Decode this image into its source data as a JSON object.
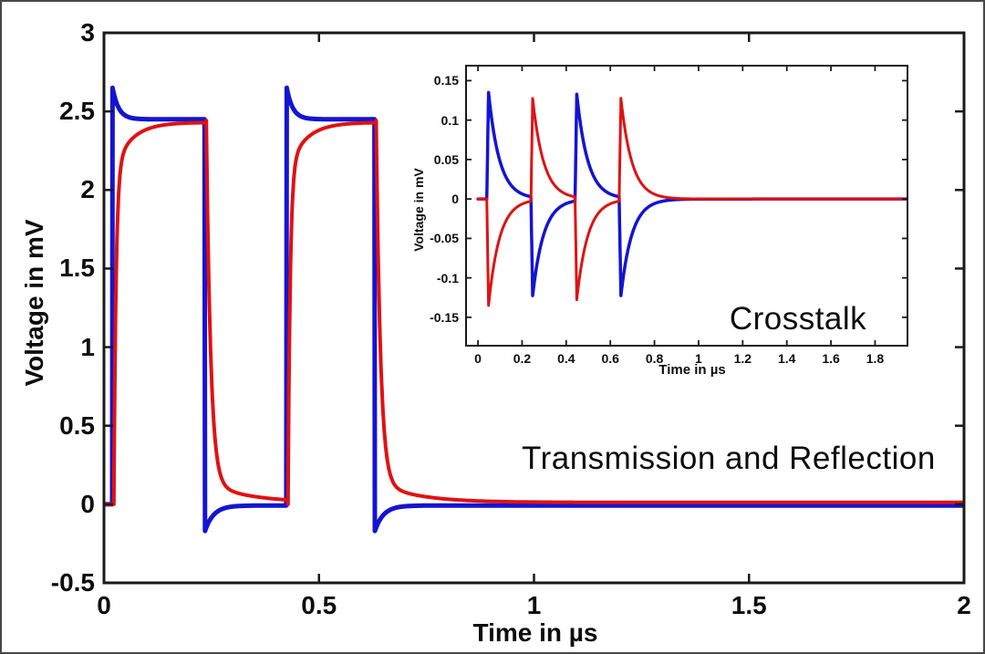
{
  "figure": {
    "background": "#ffffff",
    "frame_color": "#474747",
    "axis_color": "#1a1a1a",
    "blue_color": "#1414d2",
    "red_color": "#e01212"
  },
  "chart_data": [
    {
      "id": "main",
      "type": "line",
      "annotation": "Transmission and Reflection",
      "xlabel": "Time in µs",
      "ylabel": "Voltage in mV",
      "xlim": [
        0,
        2
      ],
      "ylim": [
        -0.5,
        3
      ],
      "grid": false,
      "legend": "none",
      "xticks": [
        {
          "v": 0,
          "label": "0"
        },
        {
          "v": 0.5,
          "label": "0.5"
        },
        {
          "v": 1,
          "label": "1"
        },
        {
          "v": 1.5,
          "label": "1.5"
        },
        {
          "v": 2,
          "label": "2"
        }
      ],
      "yticks": [
        {
          "v": -0.5,
          "label": "-0.5"
        },
        {
          "v": 0,
          "label": "0"
        },
        {
          "v": 0.5,
          "label": "0.5"
        },
        {
          "v": 1,
          "label": "1"
        },
        {
          "v": 1.5,
          "label": "1.5"
        },
        {
          "v": 2,
          "label": "2"
        },
        {
          "v": 2.5,
          "label": "2.5"
        },
        {
          "v": 3,
          "label": "3"
        }
      ],
      "sample_range": [
        0,
        2,
        0.001
      ],
      "series": [
        {
          "name": "blue-waveform",
          "color": "#1414d2",
          "width": 5,
          "model": "square_rc",
          "params": {
            "baseline": 0,
            "pulses": [
              [
                0.02,
                0.235
              ],
              [
                0.425,
                0.63
              ]
            ],
            "plateau": 2.45,
            "peak": 2.65,
            "tau_settle": 0.014,
            "under": -0.17,
            "tau_recover": 0.02,
            "tail": -0.008
          }
        },
        {
          "name": "red-waveform",
          "color": "#e01212",
          "width": 4,
          "model": "rc_pulse",
          "params": {
            "baseline": 0,
            "pulses": [
              [
                0.023,
                0.238
              ],
              [
                0.428,
                0.633
              ]
            ],
            "top": 2.43,
            "rise_knee": 0.3,
            "rise_fast": 0.005,
            "rise_slow": 0.04,
            "fall_knee": 0.13,
            "fall_fast": 0.01,
            "fall_slow": 0.09,
            "tail": 0.012
          }
        }
      ]
    },
    {
      "id": "inset",
      "type": "line",
      "annotation": "Crosstalk",
      "xlabel": "Time in µs",
      "ylabel": "Voltage in mV",
      "xlim": [
        -0.054,
        1.947
      ],
      "ylim": [
        -0.186,
        0.169
      ],
      "grid": false,
      "legend": "none",
      "xticks": [
        {
          "v": 0,
          "label": "0"
        },
        {
          "v": 0.2,
          "label": "0.2"
        },
        {
          "v": 0.4,
          "label": "0.4"
        },
        {
          "v": 0.6,
          "label": "0.6"
        },
        {
          "v": 0.8,
          "label": "0.8"
        },
        {
          "v": 1,
          "label": "1"
        },
        {
          "v": 1.2,
          "label": "1.2"
        },
        {
          "v": 1.4,
          "label": "1.4"
        },
        {
          "v": 1.6,
          "label": "1.6"
        },
        {
          "v": 1.8,
          "label": "1.8"
        }
      ],
      "yticks": [
        {
          "v": -0.15,
          "label": "-0.15"
        },
        {
          "v": -0.1,
          "label": "-0.1"
        },
        {
          "v": -0.05,
          "label": "-0.05"
        },
        {
          "v": 0,
          "label": "0"
        },
        {
          "v": 0.05,
          "label": "0.05"
        },
        {
          "v": 0.1,
          "label": "0.1"
        },
        {
          "v": 0.15,
          "label": "0.15"
        }
      ],
      "sample_range": [
        0,
        1.946,
        0.001
      ],
      "series": [
        {
          "name": "blue-crosstalk",
          "color": "#1414d2",
          "width": 3.5,
          "model": "spike_train",
          "params": {
            "baseline": 0,
            "rise": 0.008,
            "tau": 0.05,
            "spikes": [
              {
                "t": 0.04,
                "peak": 0.135
              },
              {
                "t": 0.24,
                "peak": -0.125
              },
              {
                "t": 0.44,
                "peak": 0.135
              },
              {
                "t": 0.64,
                "peak": -0.125
              }
            ]
          }
        },
        {
          "name": "red-crosstalk",
          "color": "#e01212",
          "width": 3,
          "model": "spike_train",
          "params": {
            "baseline": 0,
            "rise": 0.008,
            "tau": 0.05,
            "spikes": [
              {
                "t": 0.04,
                "peak": -0.135
              },
              {
                "t": 0.24,
                "peak": 0.13
              },
              {
                "t": 0.44,
                "peak": -0.13
              },
              {
                "t": 0.64,
                "peak": 0.13
              }
            ]
          }
        }
      ]
    }
  ]
}
